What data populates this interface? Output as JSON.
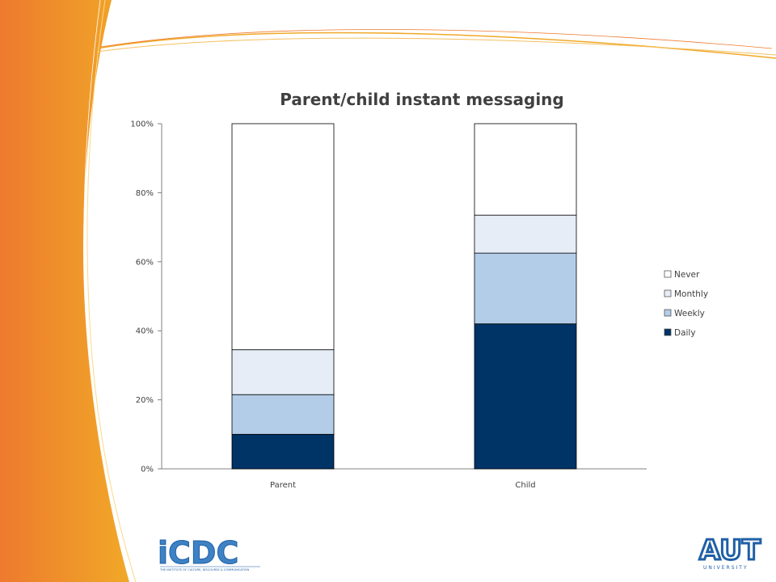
{
  "slide": {
    "left_logo_text": "iCDC",
    "left_logo_caption": "THE INSTITUTE OF CULTURE, DISCOURSE & COMMUNICATION",
    "right_logo_text": "AUT",
    "right_logo_caption": "UNIVERSITY"
  },
  "colors": {
    "never": "#FFFFFF",
    "monthly": "#E6EDF7",
    "weekly": "#B3CDE8",
    "daily": "#003366",
    "accent_orange": "#EE7A2E",
    "accent_yellow": "#F0A828",
    "logo_blue": "#1F5FA6"
  },
  "chart_data": {
    "type": "bar",
    "stacked": true,
    "percent": true,
    "title": "Parent/child instant messaging",
    "xlabel": "",
    "ylabel": "",
    "categories": [
      "Parent",
      "Child"
    ],
    "series": [
      {
        "name": "Daily",
        "values": [
          10,
          42
        ]
      },
      {
        "name": "Weekly",
        "values": [
          11.5,
          20.5
        ]
      },
      {
        "name": "Monthly",
        "values": [
          13,
          11
        ]
      },
      {
        "name": "Never",
        "values": [
          65.5,
          26.5
        ]
      }
    ],
    "ylim": [
      0,
      100
    ],
    "yticks": [
      "0%",
      "20%",
      "40%",
      "60%",
      "80%",
      "100%"
    ],
    "legend_position": "right",
    "legend_order": [
      "Never",
      "Monthly",
      "Weekly",
      "Daily"
    ],
    "grid": false
  }
}
